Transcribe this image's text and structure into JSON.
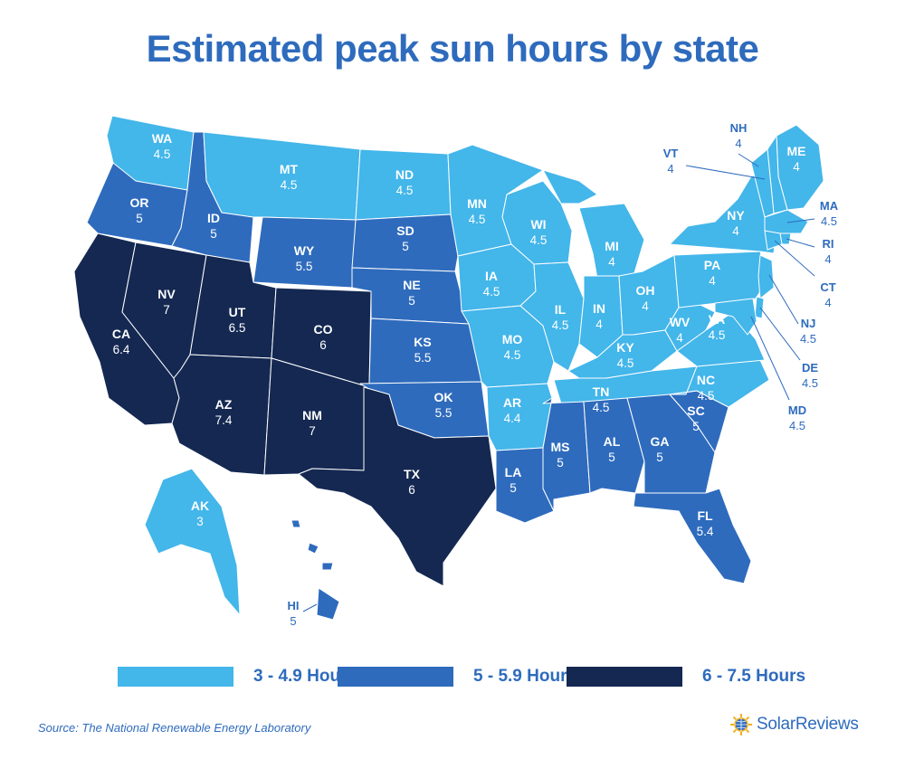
{
  "title": "Estimated peak sun hours by state",
  "colors": {
    "low": "#43b6ea",
    "mid": "#2e6bbd",
    "high": "#142852",
    "label": "#2e6bbd"
  },
  "legend": [
    {
      "label": "3 - 4.9 Hours",
      "tier": "low"
    },
    {
      "label": "5 - 5.9 Hours",
      "tier": "mid"
    },
    {
      "label": "6 - 7.5 Hours",
      "tier": "high"
    }
  ],
  "states": [
    {
      "abbr": "WA",
      "value": "4.5",
      "tier": "low"
    },
    {
      "abbr": "OR",
      "value": "5",
      "tier": "mid"
    },
    {
      "abbr": "CA",
      "value": "6.4",
      "tier": "high"
    },
    {
      "abbr": "NV",
      "value": "7",
      "tier": "high"
    },
    {
      "abbr": "ID",
      "value": "5",
      "tier": "mid"
    },
    {
      "abbr": "MT",
      "value": "4.5",
      "tier": "low"
    },
    {
      "abbr": "WY",
      "value": "5.5",
      "tier": "mid"
    },
    {
      "abbr": "UT",
      "value": "6.5",
      "tier": "high"
    },
    {
      "abbr": "AZ",
      "value": "7.4",
      "tier": "high"
    },
    {
      "abbr": "CO",
      "value": "6",
      "tier": "high"
    },
    {
      "abbr": "NM",
      "value": "7",
      "tier": "high"
    },
    {
      "abbr": "ND",
      "value": "4.5",
      "tier": "low"
    },
    {
      "abbr": "SD",
      "value": "5",
      "tier": "mid"
    },
    {
      "abbr": "NE",
      "value": "5",
      "tier": "mid"
    },
    {
      "abbr": "KS",
      "value": "5.5",
      "tier": "mid"
    },
    {
      "abbr": "OK",
      "value": "5.5",
      "tier": "mid"
    },
    {
      "abbr": "TX",
      "value": "6",
      "tier": "high"
    },
    {
      "abbr": "MN",
      "value": "4.5",
      "tier": "low"
    },
    {
      "abbr": "IA",
      "value": "4.5",
      "tier": "low"
    },
    {
      "abbr": "MO",
      "value": "4.5",
      "tier": "low"
    },
    {
      "abbr": "AR",
      "value": "4.4",
      "tier": "low"
    },
    {
      "abbr": "LA",
      "value": "5",
      "tier": "mid"
    },
    {
      "abbr": "WI",
      "value": "4.5",
      "tier": "low"
    },
    {
      "abbr": "IL",
      "value": "4.5",
      "tier": "low"
    },
    {
      "abbr": "MI",
      "value": "4",
      "tier": "low"
    },
    {
      "abbr": "IN",
      "value": "4",
      "tier": "low"
    },
    {
      "abbr": "OH",
      "value": "4",
      "tier": "low"
    },
    {
      "abbr": "KY",
      "value": "4.5",
      "tier": "low"
    },
    {
      "abbr": "TN",
      "value": "4.5",
      "tier": "low"
    },
    {
      "abbr": "MS",
      "value": "5",
      "tier": "mid"
    },
    {
      "abbr": "AL",
      "value": "5",
      "tier": "mid"
    },
    {
      "abbr": "GA",
      "value": "5",
      "tier": "mid"
    },
    {
      "abbr": "FL",
      "value": "5.4",
      "tier": "mid"
    },
    {
      "abbr": "SC",
      "value": "5",
      "tier": "mid"
    },
    {
      "abbr": "NC",
      "value": "4.5",
      "tier": "low"
    },
    {
      "abbr": "VA",
      "value": "4.5",
      "tier": "low"
    },
    {
      "abbr": "WV",
      "value": "4",
      "tier": "low"
    },
    {
      "abbr": "PA",
      "value": "4",
      "tier": "low"
    },
    {
      "abbr": "NY",
      "value": "4",
      "tier": "low"
    },
    {
      "abbr": "ME",
      "value": "4",
      "tier": "low"
    },
    {
      "abbr": "NH",
      "value": "4",
      "tier": "low"
    },
    {
      "abbr": "VT",
      "value": "4",
      "tier": "low"
    },
    {
      "abbr": "MA",
      "value": "4.5",
      "tier": "low"
    },
    {
      "abbr": "RI",
      "value": "4",
      "tier": "low"
    },
    {
      "abbr": "CT",
      "value": "4",
      "tier": "low"
    },
    {
      "abbr": "NJ",
      "value": "4.5",
      "tier": "low"
    },
    {
      "abbr": "DE",
      "value": "4.5",
      "tier": "low"
    },
    {
      "abbr": "MD",
      "value": "4.5",
      "tier": "low"
    },
    {
      "abbr": "AK",
      "value": "3",
      "tier": "low"
    },
    {
      "abbr": "HI",
      "value": "5",
      "tier": "mid"
    }
  ],
  "source": "Source: The National Renewable Energy Laboratory",
  "brand": {
    "name": "SolarReviews",
    "logo_icon": "sun-globe-icon"
  }
}
